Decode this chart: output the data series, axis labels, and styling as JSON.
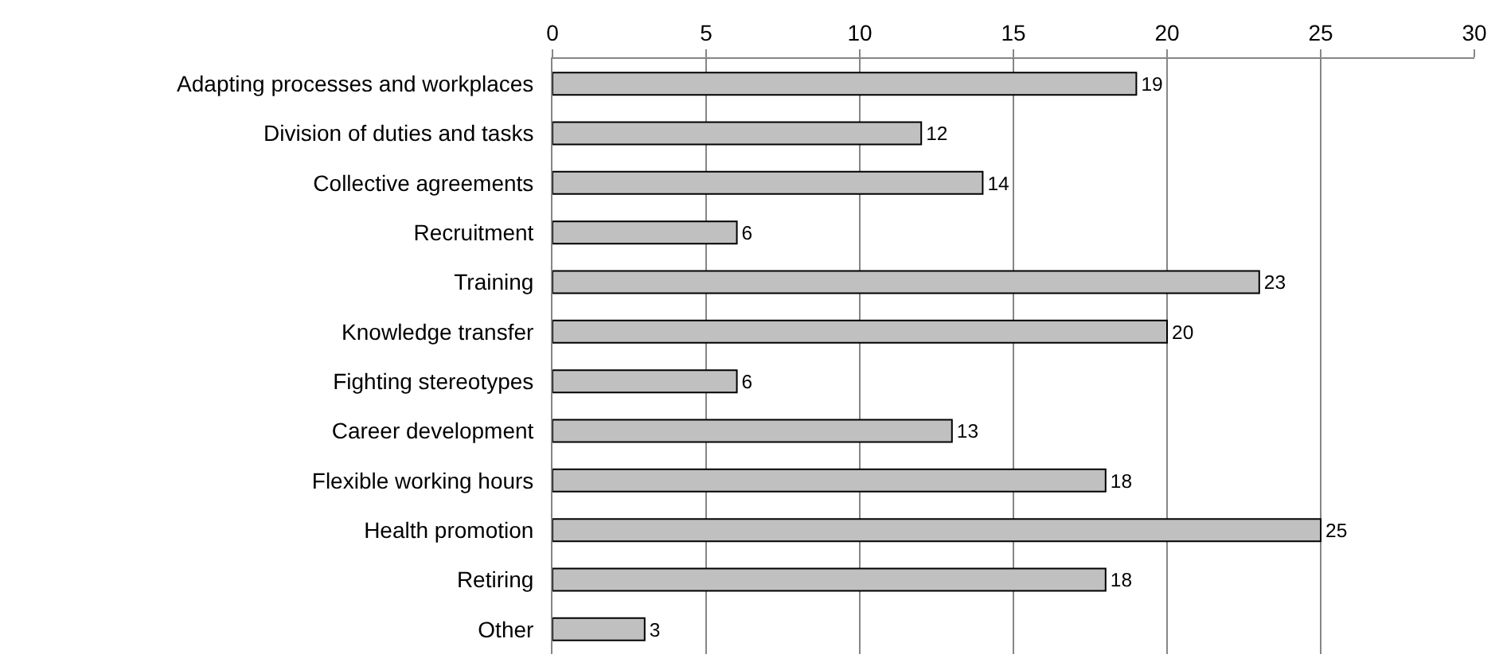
{
  "chart_data": {
    "type": "bar",
    "orientation": "horizontal",
    "categories": [
      "Adapting processes and workplaces",
      "Division of duties and tasks",
      "Collective agreements",
      "Recruitment",
      "Training",
      "Knowledge transfer",
      "Fighting stereotypes",
      "Career development",
      "Flexible working hours",
      "Health promotion",
      "Retiring",
      "Other"
    ],
    "values": [
      19,
      12,
      14,
      6,
      23,
      20,
      6,
      13,
      18,
      25,
      18,
      3
    ],
    "color": "#c0c0c0",
    "xlim": [
      0,
      30
    ],
    "xticks": [
      0,
      5,
      10,
      15,
      20,
      25,
      30
    ],
    "grid": "x",
    "data_labels": true,
    "legend": false
  }
}
